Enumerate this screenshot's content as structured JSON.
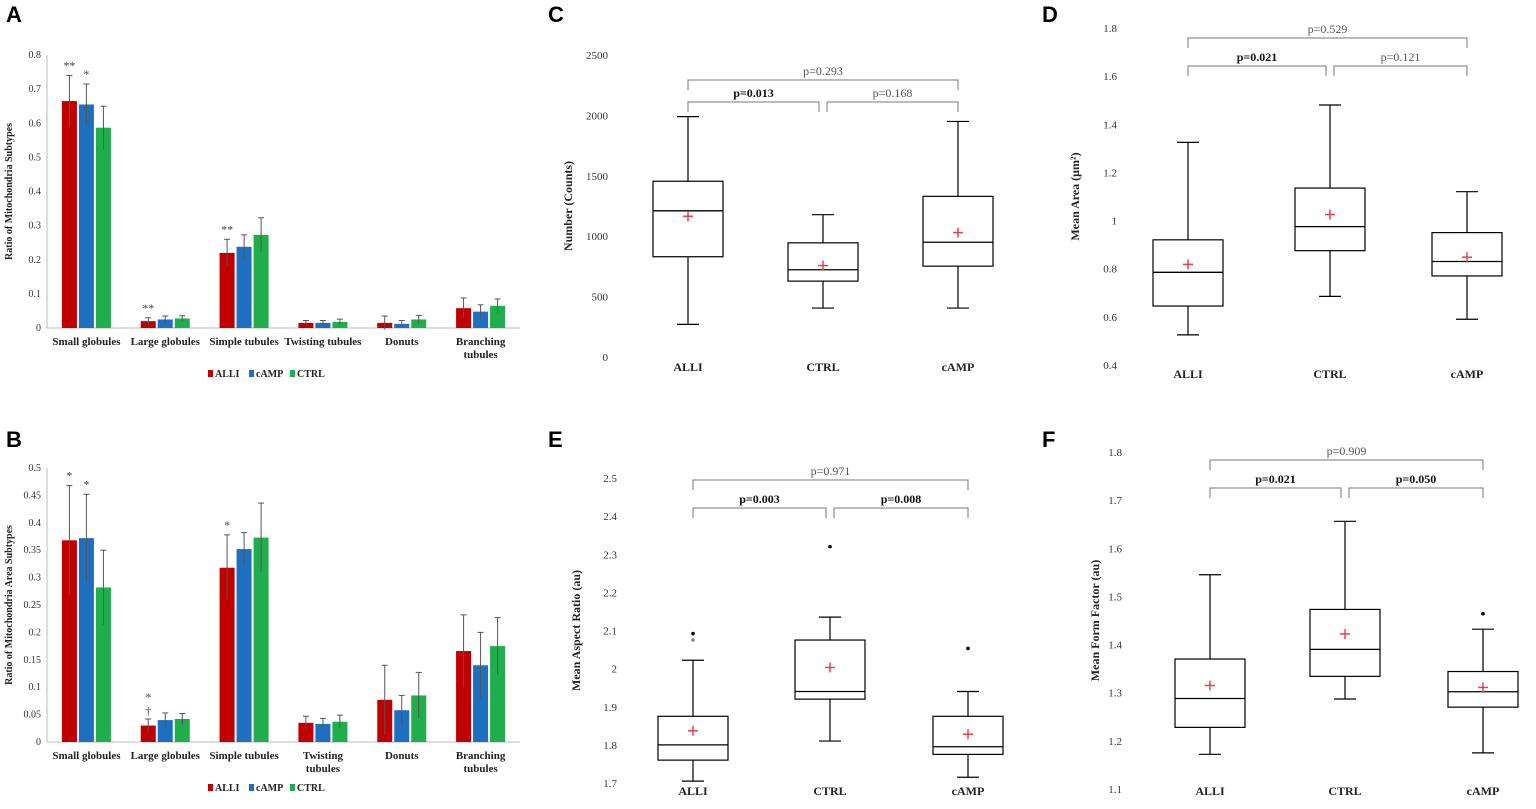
{
  "colors": {
    "ALLI": "#c00000",
    "cAMP": "#1f6fc0",
    "CTRL": "#1fae4b",
    "mean": "#e8424b"
  },
  "chart_data": [
    {
      "panel": "A",
      "type": "bar",
      "ylabel": "Ratio of Mitochondria Subtypes",
      "ylim": [
        0,
        0.8
      ],
      "yticks": [
        "0",
        "0.1",
        "0.2",
        "0.3",
        "0.4",
        "0.5",
        "0.6",
        "0.7",
        "0.8"
      ],
      "categories": [
        [
          "Small globules"
        ],
        [
          "Large globules"
        ],
        [
          "Simple tubules"
        ],
        [
          "Twisting tubules"
        ],
        [
          "Donuts"
        ],
        [
          "Branching",
          "tubules"
        ]
      ],
      "series": [
        {
          "name": "ALLI",
          "values": [
            0.665,
            0.02,
            0.22,
            0.015,
            0.015,
            0.058
          ],
          "errors": [
            0.075,
            0.01,
            0.04,
            0.007,
            0.02,
            0.03
          ]
        },
        {
          "name": "cAMP",
          "values": [
            0.655,
            0.025,
            0.238,
            0.015,
            0.012,
            0.048
          ],
          "errors": [
            0.06,
            0.01,
            0.035,
            0.007,
            0.01,
            0.02
          ]
        },
        {
          "name": "CTRL",
          "values": [
            0.587,
            0.028,
            0.273,
            0.018,
            0.025,
            0.065
          ],
          "errors": [
            0.063,
            0.008,
            0.05,
            0.008,
            0.012,
            0.02
          ]
        }
      ],
      "annotations": [
        {
          "category": 0,
          "series": 0,
          "text": "**"
        },
        {
          "category": 0,
          "series": 1,
          "text": "*"
        },
        {
          "category": 1,
          "series": 0,
          "text": "**"
        },
        {
          "category": 2,
          "series": 0,
          "text": "**"
        }
      ],
      "legend": [
        "ALLI",
        "cAMP",
        "CTRL"
      ]
    },
    {
      "panel": "B",
      "type": "bar",
      "ylabel": "Ratio of Mitochondria Area Subtypes",
      "ylim": [
        0,
        0.5
      ],
      "yticks": [
        "0",
        "0.05",
        "0.1",
        "0.15",
        "0.2",
        "0.25",
        "0.3",
        "0.35",
        "0.4",
        "0.45",
        "0.5"
      ],
      "categories": [
        [
          "Small globules"
        ],
        [
          "Large globules"
        ],
        [
          "Simple tubules"
        ],
        [
          "Twisting",
          "tubules"
        ],
        [
          "Donuts"
        ],
        [
          "Branching",
          "tubules"
        ]
      ],
      "series": [
        {
          "name": "ALLI",
          "values": [
            0.368,
            0.03,
            0.318,
            0.035,
            0.077,
            0.166
          ],
          "errors": [
            0.1,
            0.012,
            0.06,
            0.012,
            0.063,
            0.066
          ]
        },
        {
          "name": "cAMP",
          "values": [
            0.372,
            0.04,
            0.352,
            0.033,
            0.058,
            0.14
          ],
          "errors": [
            0.08,
            0.013,
            0.03,
            0.01,
            0.027,
            0.06
          ]
        },
        {
          "name": "CTRL",
          "values": [
            0.282,
            0.042,
            0.373,
            0.037,
            0.085,
            0.175
          ],
          "errors": [
            0.068,
            0.01,
            0.063,
            0.012,
            0.042,
            0.052
          ]
        }
      ],
      "annotations": [
        {
          "category": 0,
          "series": 0,
          "text": "*"
        },
        {
          "category": 0,
          "series": 1,
          "text": "*"
        },
        {
          "category": 1,
          "series": 0,
          "text": "*"
        },
        {
          "category": 1,
          "series": 0,
          "text": "†"
        },
        {
          "category": 2,
          "series": 0,
          "text": "*"
        }
      ],
      "legend": [
        "ALLI",
        "cAMP",
        "CTRL"
      ]
    },
    {
      "panel": "C",
      "type": "box",
      "ylabel": "Number (Counts)",
      "ylim": [
        0,
        2500
      ],
      "yticks": [
        "0",
        "500",
        "1000",
        "1500",
        "2000",
        "2500"
      ],
      "categories": [
        "ALLI",
        "CTRL",
        "cAMP"
      ],
      "boxes": [
        {
          "min": 270,
          "q1": 830,
          "median": 1210,
          "q3": 1455,
          "max": 1990,
          "mean": 1165,
          "outliers": []
        },
        {
          "min": 405,
          "q1": 628,
          "median": 722,
          "q3": 945,
          "max": 1178,
          "mean": 757,
          "outliers": []
        },
        {
          "min": 405,
          "q1": 752,
          "median": 950,
          "q3": 1330,
          "max": 1950,
          "mean": 1030,
          "outliers": []
        }
      ],
      "comparisons": [
        {
          "from": 0,
          "to": 1,
          "text": "p=0.013",
          "bold": true,
          "level": 0
        },
        {
          "from": 1,
          "to": 2,
          "text": "p=0.168",
          "bold": false,
          "level": 0
        },
        {
          "from": 0,
          "to": 2,
          "text": "p=0.293",
          "bold": false,
          "level": 1
        }
      ]
    },
    {
      "panel": "D",
      "type": "box",
      "ylabel": "Mean Area (μm²)",
      "ylim": [
        0.4,
        1.8
      ],
      "yticks": [
        "0.4",
        "0.6",
        "0.8",
        "1",
        "1.2",
        "1.4",
        "1.6",
        "1.8"
      ],
      "categories": [
        "ALLI",
        "CTRL",
        "cAMP"
      ],
      "boxes": [
        {
          "min": 0.525,
          "q1": 0.645,
          "median": 0.785,
          "q3": 0.92,
          "max": 1.325,
          "mean": 0.818,
          "outliers": []
        },
        {
          "min": 0.685,
          "q1": 0.875,
          "median": 0.975,
          "q3": 1.135,
          "max": 1.48,
          "mean": 1.025,
          "outliers": []
        },
        {
          "min": 0.59,
          "q1": 0.77,
          "median": 0.83,
          "q3": 0.95,
          "max": 1.12,
          "mean": 0.848,
          "outliers": []
        }
      ],
      "comparisons": [
        {
          "from": 0,
          "to": 1,
          "text": "p=0.021",
          "bold": true,
          "level": 0
        },
        {
          "from": 1,
          "to": 2,
          "text": "p=0.121",
          "bold": false,
          "level": 0
        },
        {
          "from": 0,
          "to": 2,
          "text": "p=0.529",
          "bold": false,
          "level": 1
        }
      ]
    },
    {
      "panel": "E",
      "type": "box",
      "ylabel": "Mean Aspect Ratio (au)",
      "ylim": [
        1.7,
        2.5
      ],
      "yticks": [
        "1.7",
        "1.8",
        "1.9",
        "2",
        "2.1",
        "2.2",
        "2.3",
        "2.4",
        "2.5"
      ],
      "categories": [
        "ALLI",
        "CTRL",
        "cAMP"
      ],
      "boxes": [
        {
          "min": 1.705,
          "q1": 1.76,
          "median": 1.8,
          "q3": 1.875,
          "max": 2.022,
          "mean": 1.837,
          "outliers": [
            2.092,
            2.075
          ]
        },
        {
          "min": 1.81,
          "q1": 1.92,
          "median": 1.94,
          "q3": 2.075,
          "max": 2.135,
          "mean": 2.003,
          "outliers": [
            2.32
          ]
        },
        {
          "min": 1.715,
          "q1": 1.775,
          "median": 1.795,
          "q3": 1.875,
          "max": 1.94,
          "mean": 1.828,
          "outliers": [
            2.053
          ]
        }
      ],
      "comparisons": [
        {
          "from": 0,
          "to": 1,
          "text": "p=0.003",
          "bold": true,
          "level": 0
        },
        {
          "from": 1,
          "to": 2,
          "text": "p=0.008",
          "bold": true,
          "level": 0
        },
        {
          "from": 0,
          "to": 2,
          "text": "p=0.971",
          "bold": false,
          "level": 1
        }
      ]
    },
    {
      "panel": "F",
      "type": "box",
      "ylabel": "Mean Form Factor (au)",
      "ylim": [
        1.1,
        1.8
      ],
      "yticks": [
        "1.1",
        "1.2",
        "1.3",
        "1.4",
        "1.5",
        "1.6",
        "1.7",
        "1.8"
      ],
      "categories": [
        "ALLI",
        "CTRL",
        "cAMP"
      ],
      "boxes": [
        {
          "min": 1.172,
          "q1": 1.228,
          "median": 1.288,
          "q3": 1.37,
          "max": 1.545,
          "mean": 1.315,
          "outliers": []
        },
        {
          "min": 1.287,
          "q1": 1.334,
          "median": 1.39,
          "q3": 1.473,
          "max": 1.656,
          "mean": 1.422,
          "outliers": []
        },
        {
          "min": 1.175,
          "q1": 1.27,
          "median": 1.302,
          "q3": 1.344,
          "max": 1.432,
          "mean": 1.311,
          "outliers": [
            1.464
          ]
        }
      ],
      "comparisons": [
        {
          "from": 0,
          "to": 1,
          "text": "p=0.021",
          "bold": true,
          "level": 0
        },
        {
          "from": 1,
          "to": 2,
          "text": "p=0.050",
          "bold": true,
          "level": 0
        },
        {
          "from": 0,
          "to": 2,
          "text": "p=0.909",
          "bold": false,
          "level": 1
        }
      ]
    }
  ]
}
